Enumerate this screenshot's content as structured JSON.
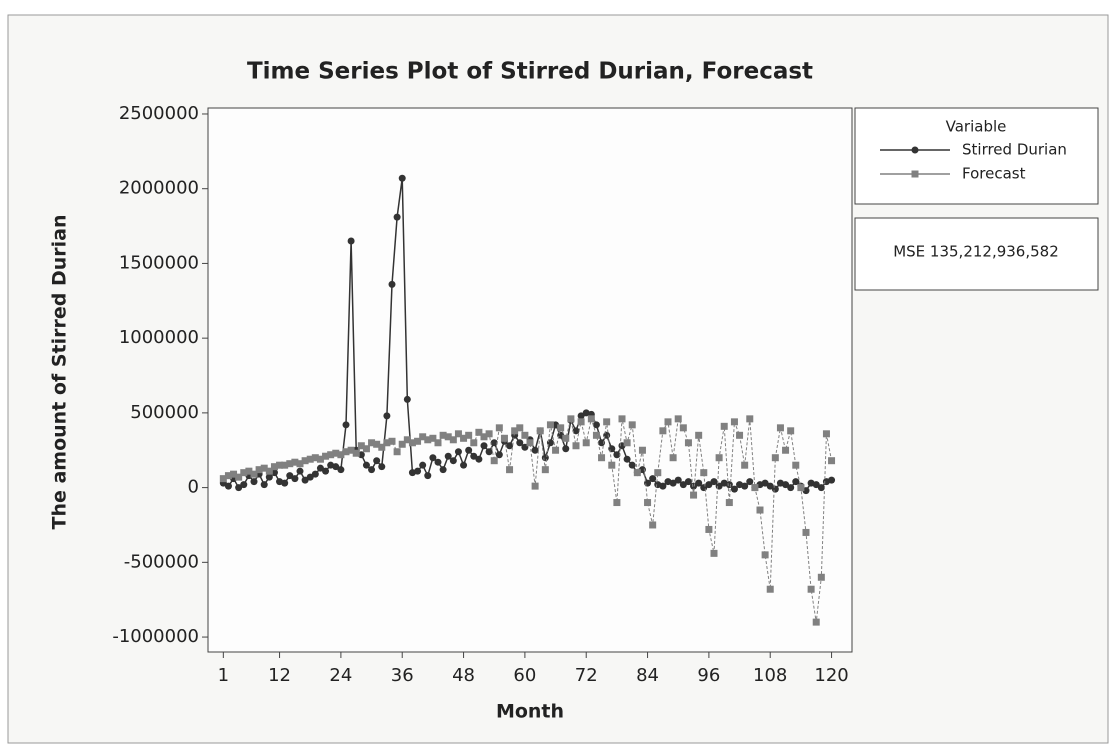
{
  "chart_data": {
    "type": "line",
    "title": "Time Series Plot of Stirred Durian, Forecast",
    "x_label": "Month",
    "y_label": "The  amount of Stirred  Durian",
    "legend_title": "Variable",
    "annotation": "MSE 135,212,936,582",
    "x": [
      1,
      2,
      3,
      4,
      5,
      6,
      7,
      8,
      9,
      10,
      11,
      12,
      13,
      14,
      15,
      16,
      17,
      18,
      19,
      20,
      21,
      22,
      23,
      24,
      25,
      26,
      27,
      28,
      29,
      30,
      31,
      32,
      33,
      34,
      35,
      36,
      37,
      38,
      39,
      40,
      41,
      42,
      43,
      44,
      45,
      46,
      47,
      48,
      49,
      50,
      51,
      52,
      53,
      54,
      55,
      56,
      57,
      58,
      59,
      60,
      61,
      62,
      63,
      64,
      65,
      66,
      67,
      68,
      69,
      70,
      71,
      72,
      73,
      74,
      75,
      76,
      77,
      78,
      79,
      80,
      81,
      82,
      83,
      84,
      85,
      86,
      87,
      88,
      89,
      90,
      91,
      92,
      93,
      94,
      95,
      96,
      97,
      98,
      99,
      100,
      101,
      102,
      103,
      104,
      105,
      106,
      107,
      108,
      109,
      110,
      111,
      112,
      113,
      114,
      115,
      116,
      117,
      118,
      119,
      120
    ],
    "series": [
      {
        "name": "Stirred Durian",
        "color": "#333333",
        "marker": "circle",
        "values": [
          30000,
          10000,
          60000,
          0,
          20000,
          80000,
          40000,
          90000,
          20000,
          70000,
          100000,
          40000,
          30000,
          80000,
          60000,
          110000,
          50000,
          70000,
          90000,
          130000,
          110000,
          150000,
          140000,
          120000,
          420000,
          1650000,
          250000,
          220000,
          150000,
          120000,
          180000,
          140000,
          480000,
          1360000,
          1810000,
          2070000,
          590000,
          100000,
          110000,
          150000,
          80000,
          200000,
          170000,
          120000,
          210000,
          180000,
          240000,
          150000,
          250000,
          210000,
          190000,
          280000,
          240000,
          300000,
          220000,
          310000,
          280000,
          350000,
          300000,
          270000,
          320000,
          250000,
          380000,
          200000,
          300000,
          420000,
          350000,
          260000,
          450000,
          380000,
          480000,
          500000,
          490000,
          420000,
          300000,
          350000,
          260000,
          220000,
          280000,
          190000,
          150000,
          100000,
          120000,
          30000,
          60000,
          20000,
          10000,
          40000,
          30000,
          50000,
          20000,
          40000,
          10000,
          30000,
          0,
          20000,
          40000,
          10000,
          30000,
          20000,
          -10000,
          20000,
          10000,
          40000,
          0,
          20000,
          30000,
          10000,
          -10000,
          30000,
          20000,
          0,
          40000,
          10000,
          -20000,
          30000,
          20000,
          0,
          40000,
          50000
        ]
      },
      {
        "name": "Forecast",
        "color": "#808080",
        "marker": "square",
        "values": [
          60000,
          80000,
          90000,
          70000,
          100000,
          110000,
          90000,
          120000,
          130000,
          110000,
          140000,
          150000,
          150000,
          160000,
          170000,
          160000,
          180000,
          190000,
          200000,
          190000,
          210000,
          220000,
          230000,
          220000,
          240000,
          250000,
          230000,
          280000,
          260000,
          300000,
          290000,
          270000,
          300000,
          310000,
          240000,
          290000,
          320000,
          300000,
          310000,
          340000,
          320000,
          330000,
          300000,
          350000,
          340000,
          320000,
          360000,
          330000,
          350000,
          300000,
          370000,
          340000,
          360000,
          180000,
          400000,
          330000,
          120000,
          380000,
          400000,
          350000,
          300000,
          10000,
          380000,
          120000,
          420000,
          250000,
          400000,
          330000,
          460000,
          280000,
          440000,
          300000,
          460000,
          350000,
          200000,
          440000,
          150000,
          -100000,
          460000,
          300000,
          420000,
          100000,
          250000,
          -100000,
          -250000,
          100000,
          380000,
          440000,
          200000,
          460000,
          400000,
          300000,
          -50000,
          350000,
          100000,
          -280000,
          -440000,
          200000,
          410000,
          -100000,
          440000,
          350000,
          150000,
          460000,
          0,
          -150000,
          -450000,
          -680000,
          200000,
          400000,
          250000,
          380000,
          150000,
          0,
          -300000,
          -680000,
          -900000,
          -600000,
          360000,
          180000
        ]
      }
    ],
    "xlim": [
      -2,
      124
    ],
    "xticks": [
      1,
      12,
      24,
      36,
      48,
      60,
      72,
      84,
      96,
      108,
      120
    ],
    "ylim": [
      -1100000,
      2540000
    ],
    "yticks": [
      -1000000,
      -500000,
      0,
      500000,
      1000000,
      1500000,
      2000000,
      2500000
    ]
  }
}
